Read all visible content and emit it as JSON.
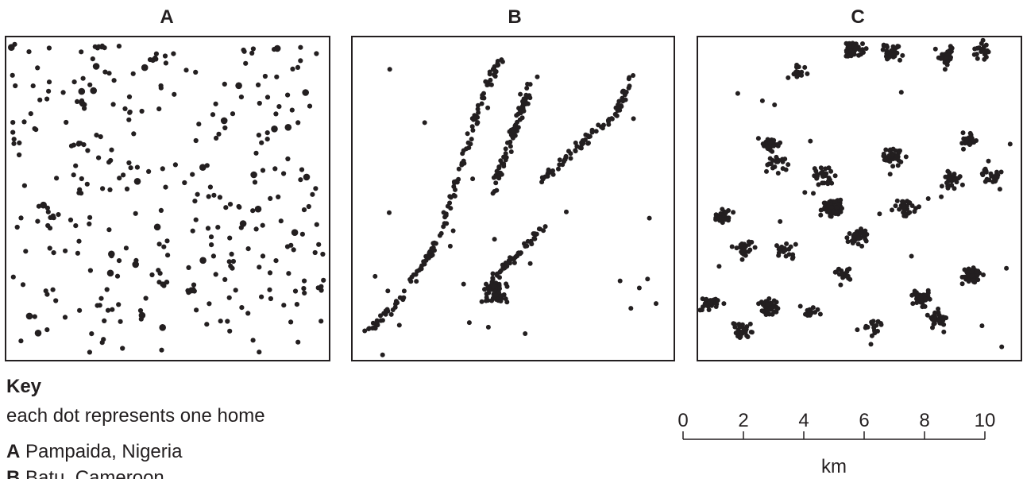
{
  "panels": [
    {
      "label": "A"
    },
    {
      "label": "B"
    },
    {
      "label": "C"
    }
  ],
  "key": {
    "title": "Key",
    "description": "each dot represents one home",
    "entries": [
      {
        "letter": "A",
        "place": "Pampaida, Nigeria"
      },
      {
        "letter": "B",
        "place": "Batu, Cameroon"
      }
    ]
  },
  "scale_bar": {
    "ticks": [
      "0",
      "2",
      "4",
      "6",
      "8",
      "10"
    ],
    "unit": "km"
  },
  "colors": {
    "ink": "#231f20",
    "background": "#ffffff"
  }
}
